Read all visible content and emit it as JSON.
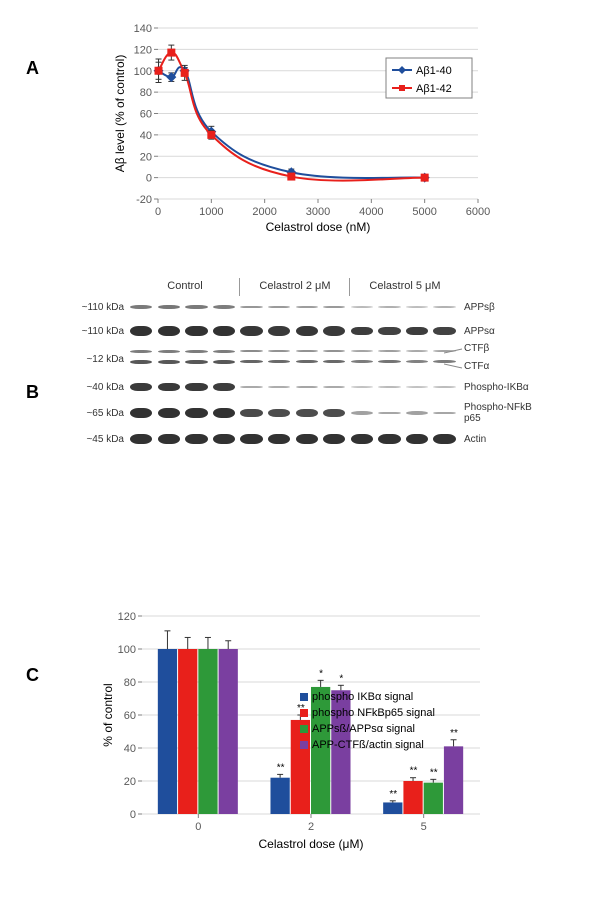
{
  "label_a": "A",
  "label_b": "B",
  "label_c": "C",
  "panelA": {
    "type": "line",
    "xlabel": "Celastrol dose (nM)",
    "ylabel": "Aβ level (% of control)",
    "xlim": [
      0,
      6000
    ],
    "ylim": [
      -20,
      140
    ],
    "xtick_step": 1000,
    "ytick_step": 20,
    "background_color": "#ffffff",
    "grid_color": "#d9d9d9",
    "axis_color": "#808080",
    "label_fontsize": 12,
    "tick_fontsize": 11,
    "series": [
      {
        "name": "Aβ1-40",
        "color": "#1f4e9c",
        "marker": "diamond",
        "marker_size": 5,
        "line_width": 2,
        "x": [
          10,
          250,
          500,
          1000,
          2500,
          5000
        ],
        "y": [
          100,
          94,
          100,
          43,
          5,
          0
        ],
        "err": [
          8,
          4,
          3,
          5,
          3,
          0
        ]
      },
      {
        "name": "Aβ1-42",
        "color": "#e8201b",
        "marker": "square",
        "marker_size": 4,
        "line_width": 2,
        "x": [
          10,
          250,
          500,
          1000,
          2500,
          5000
        ],
        "y": [
          100,
          117,
          98,
          40,
          1,
          0
        ],
        "err": [
          11,
          7,
          7,
          4,
          2,
          0
        ]
      }
    ],
    "legend": {
      "items": [
        "Aβ1-40",
        "Aβ1-42"
      ],
      "pos": "right"
    }
  },
  "panelB": {
    "type": "western_blot",
    "conditions": [
      "Control",
      "Celastrol 2 μM",
      "Celastrol 5 μM"
    ],
    "lanes_per_condition": 4,
    "rows": [
      {
        "mw": "~110 kDa",
        "protein": "APPsβ",
        "intensities": [
          0.5,
          0.52,
          0.5,
          0.48,
          0.32,
          0.3,
          0.28,
          0.3,
          0.1,
          0.16,
          0.08,
          0.14
        ],
        "thickness": 5
      },
      {
        "mw": "~110 kDa",
        "protein": "APPsα",
        "intensities": [
          0.95,
          0.95,
          0.95,
          0.95,
          0.92,
          0.9,
          0.92,
          0.9,
          0.88,
          0.85,
          0.88,
          0.85
        ],
        "thickness": 9
      },
      {
        "mw": "~12 kDa",
        "protein_top": "CTFβ",
        "protein_bot": "CTFα",
        "intensities_top": [
          0.45,
          0.45,
          0.45,
          0.45,
          0.35,
          0.3,
          0.3,
          0.3,
          0.18,
          0.22,
          0.15,
          0.18
        ],
        "intensities_bot": [
          0.7,
          0.7,
          0.7,
          0.7,
          0.6,
          0.58,
          0.58,
          0.58,
          0.45,
          0.5,
          0.42,
          0.45
        ],
        "thickness": 4,
        "double": true
      },
      {
        "mw": "~40 kDa",
        "protein": "Phospho-IKBα",
        "intensities": [
          0.9,
          0.9,
          0.9,
          0.88,
          0.2,
          0.18,
          0.22,
          0.2,
          0.05,
          0.1,
          0.05,
          0.08
        ],
        "thickness": 8
      },
      {
        "mw": "~65 kDa",
        "protein": "Phospho-NFkB p65",
        "intensities": [
          0.95,
          0.95,
          0.95,
          0.95,
          0.8,
          0.78,
          0.78,
          0.78,
          0.25,
          0.22,
          0.25,
          0.22
        ],
        "thickness": 9
      },
      {
        "mw": "~45 kDa",
        "protein": "Actin",
        "intensities": [
          0.95,
          0.95,
          0.95,
          0.95,
          0.95,
          0.95,
          0.95,
          0.95,
          0.95,
          0.95,
          0.95,
          0.95
        ],
        "thickness": 9
      }
    ],
    "band_color": "#2a2a2a",
    "mw_fontsize": 10,
    "protein_fontsize": 10
  },
  "panelC": {
    "type": "bar",
    "xlabel": "Celastrol dose (μM)",
    "ylabel": "% of control",
    "groups": [
      "0",
      "2",
      "5"
    ],
    "series": [
      {
        "name": "phospho IKBα signal",
        "color": "#1f4e9c",
        "values": [
          100,
          22,
          7
        ],
        "err": [
          11,
          2,
          1
        ],
        "sig": [
          "",
          "**",
          "**"
        ]
      },
      {
        "name": "phospho NFkBp65 signal",
        "color": "#e8201b",
        "values": [
          100,
          57,
          20
        ],
        "err": [
          7,
          3,
          2
        ],
        "sig": [
          "",
          "**",
          "**"
        ]
      },
      {
        "name": "APPsß/APPsα signal",
        "color": "#2e9939",
        "values": [
          100,
          77,
          19
        ],
        "err": [
          7,
          4,
          2
        ],
        "sig": [
          "",
          "*",
          "**"
        ]
      },
      {
        "name": "APP-CTFß/actin signal",
        "color": "#7a3fa0",
        "values": [
          100,
          75,
          41
        ],
        "err": [
          5,
          3,
          4
        ],
        "sig": [
          "",
          "*",
          "**"
        ]
      }
    ],
    "ylim": [
      0,
      120
    ],
    "ytick_step": 20,
    "bar_width": 0.16,
    "group_gap": 0.25,
    "label_fontsize": 12,
    "tick_fontsize": 11,
    "grid_color": "#d9d9d9",
    "axis_color": "#808080"
  }
}
